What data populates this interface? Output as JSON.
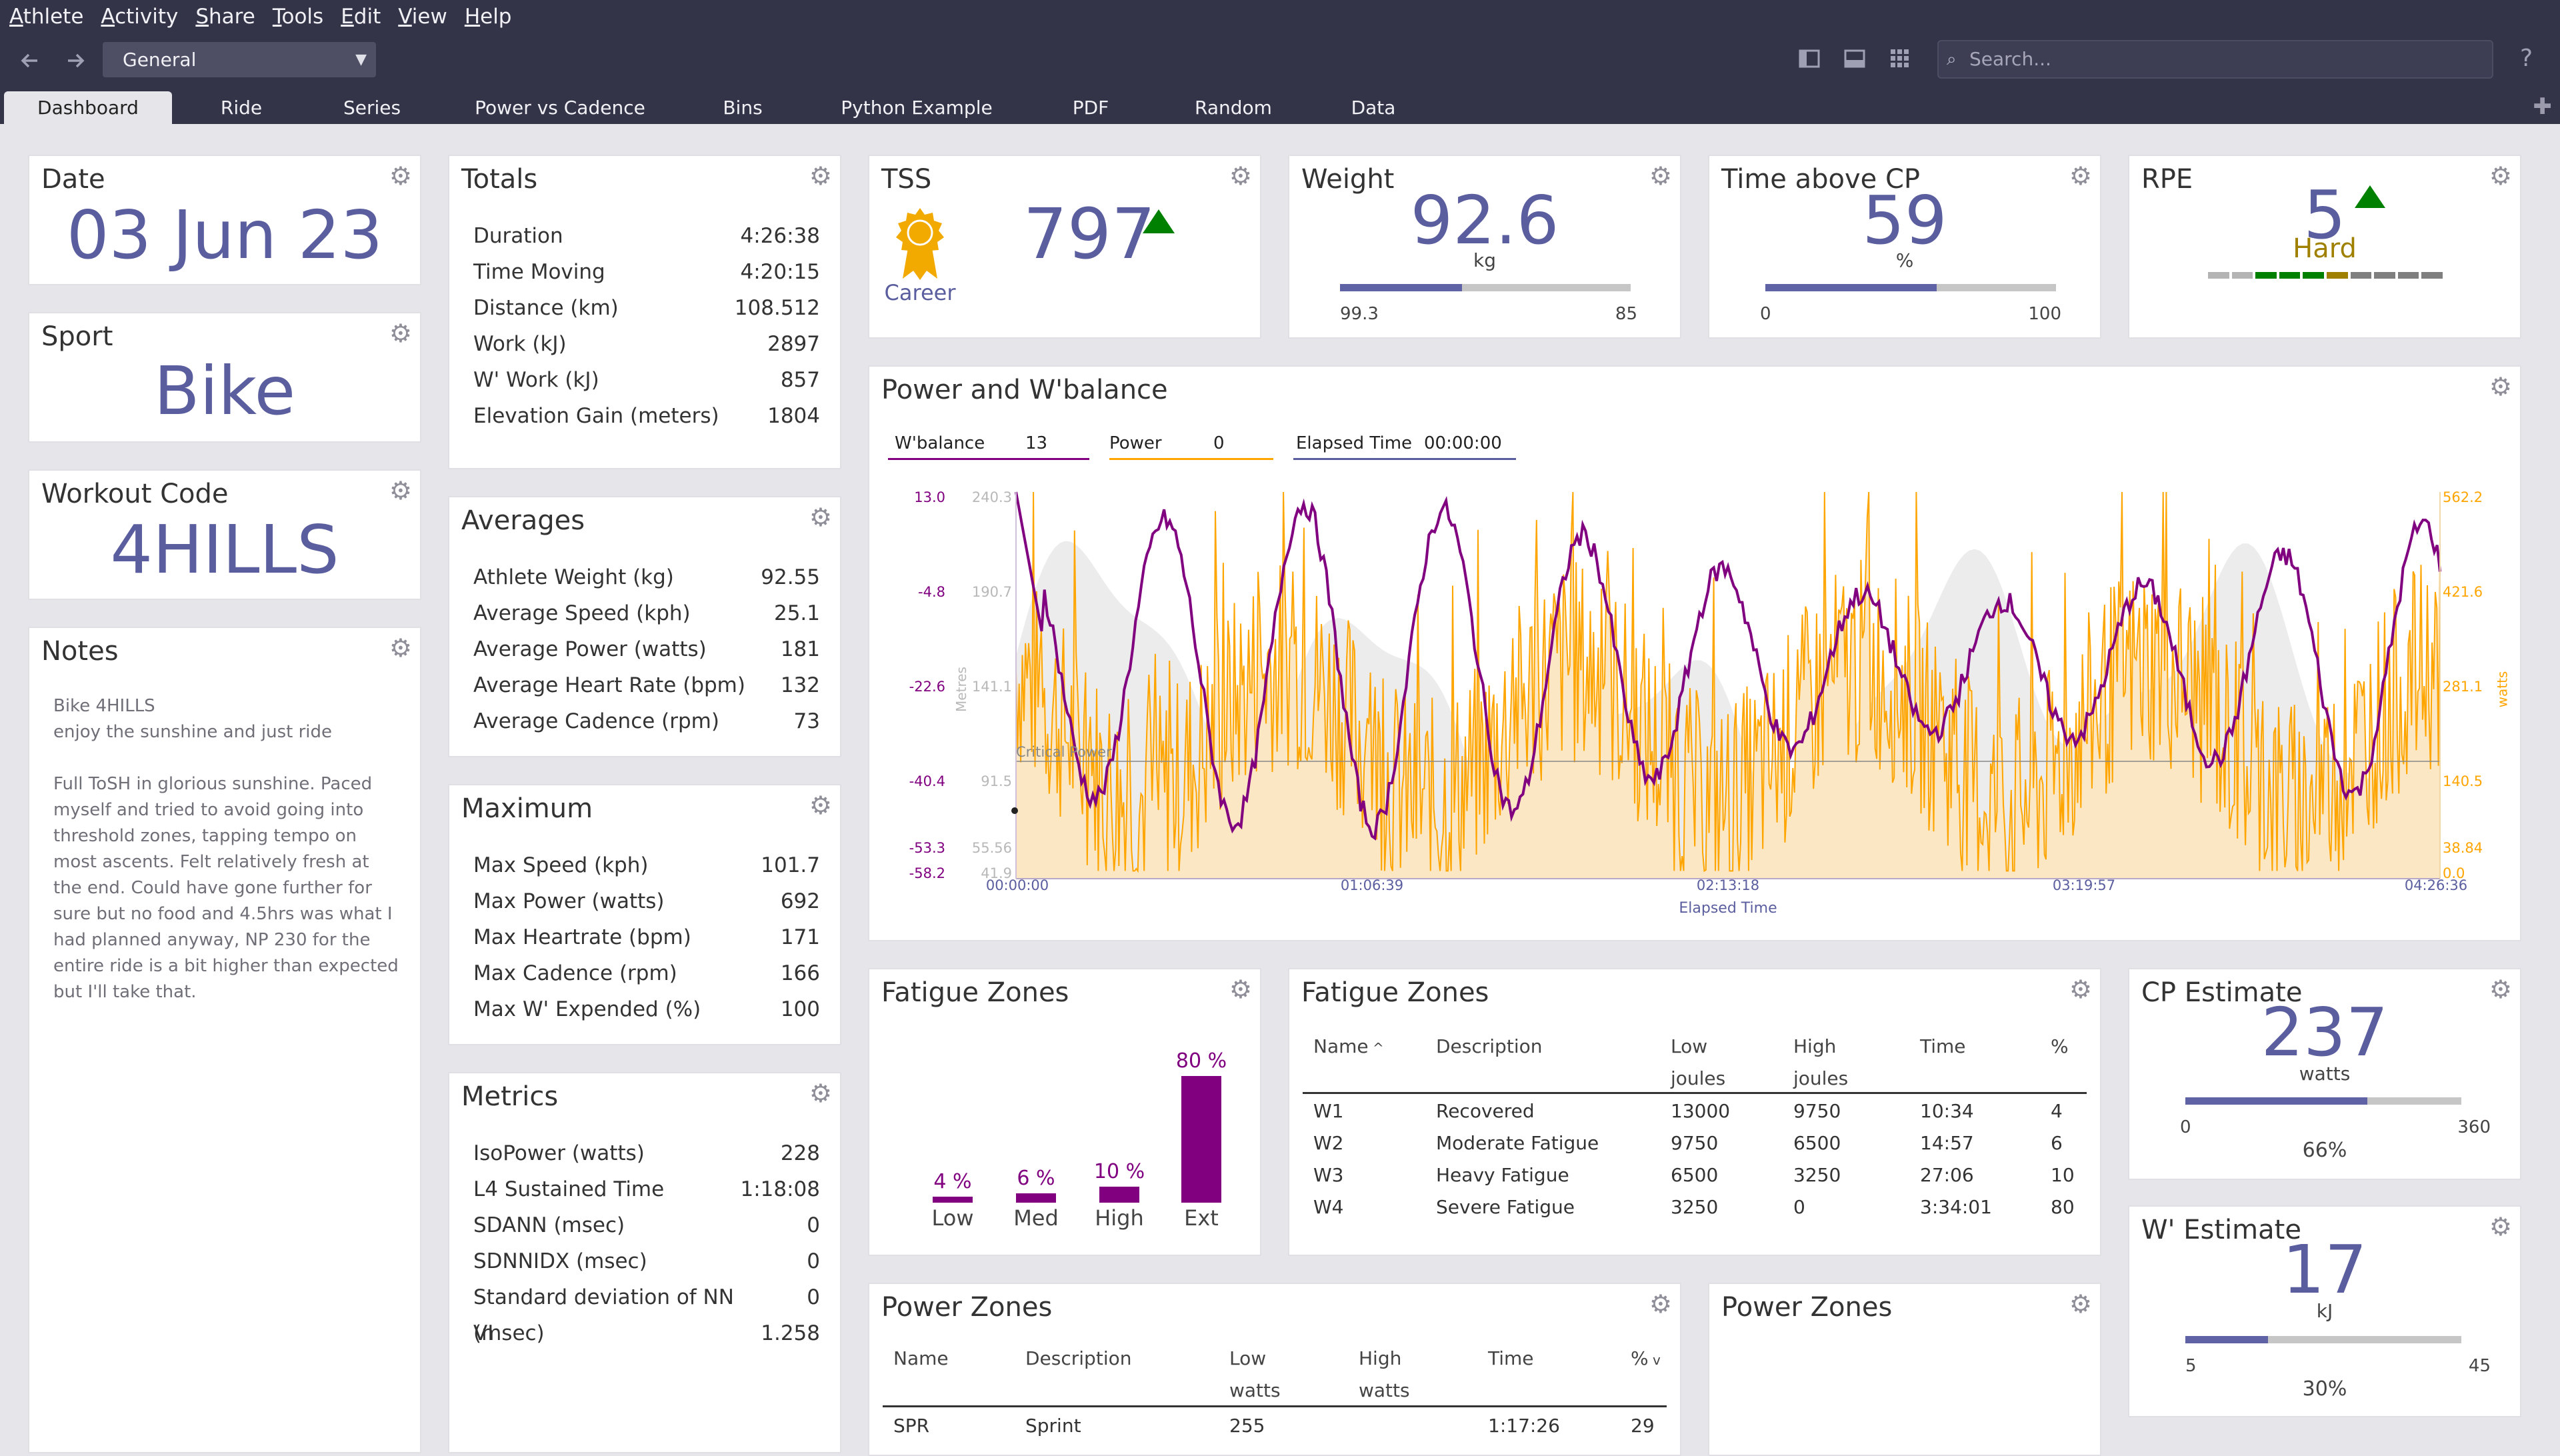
{
  "menubar": [
    "Athlete",
    "Activity",
    "Share",
    "Tools",
    "Edit",
    "View",
    "Help"
  ],
  "toolbar": {
    "back_icon": "arrow-left-icon",
    "forward_icon": "arrow-right-icon",
    "view_selected": "General",
    "search_placeholder": "Search...",
    "help_icon": "?"
  },
  "tabs": [
    "Dashboard",
    "Ride",
    "Series",
    "Power vs Cadence",
    "Bins",
    "Python Example",
    "PDF",
    "Random",
    "Data"
  ],
  "active_tab": "Dashboard",
  "colors": {
    "accent": "#5b5e9e",
    "wbal": "#800080",
    "power": "#ffa500",
    "up_arrow": "#008000"
  },
  "date_tile": {
    "title": "Date",
    "value": "03 Jun 23"
  },
  "sport_tile": {
    "title": "Sport",
    "value": "Bike"
  },
  "workout_tile": {
    "title": "Workout Code",
    "value": "4HILLS"
  },
  "notes_tile": {
    "title": "Notes",
    "text": "Bike 4HILLS\nenjoy the sunshine and just ride\n\nFull ToSH in glorious sunshine. Paced myself and tried to avoid going into threshold zones, tapping tempo on most ascents. Felt relatively fresh at the end. Could have gone further for sure but no food and 4.5hrs was what I had planned anyway, NP 230 for the entire ride is a bit higher than expected but I'll take that."
  },
  "totals": {
    "title": "Totals",
    "rows": [
      {
        "label": "Duration",
        "value": "4:26:38"
      },
      {
        "label": "Time Moving",
        "value": "4:20:15"
      },
      {
        "label": "Distance (km)",
        "value": "108.512"
      },
      {
        "label": "Work (kJ)",
        "value": "2897"
      },
      {
        "label": "W' Work (kJ)",
        "value": "857"
      },
      {
        "label": "Elevation Gain (meters)",
        "value": "1804"
      }
    ]
  },
  "averages": {
    "title": "Averages",
    "rows": [
      {
        "label": "Athlete Weight (kg)",
        "value": "92.55"
      },
      {
        "label": "Average Speed (kph)",
        "value": "25.1"
      },
      {
        "label": "Average Power (watts)",
        "value": "181"
      },
      {
        "label": "Average Heart Rate (bpm)",
        "value": "132"
      },
      {
        "label": "Average Cadence (rpm)",
        "value": "73"
      }
    ]
  },
  "maximum": {
    "title": "Maximum",
    "rows": [
      {
        "label": "Max Speed (kph)",
        "value": "101.7"
      },
      {
        "label": "Max Power (watts)",
        "value": "692"
      },
      {
        "label": "Max Heartrate (bpm)",
        "value": "171"
      },
      {
        "label": "Max Cadence (rpm)",
        "value": "166"
      },
      {
        "label": "Max W' Expended (%)",
        "value": "100"
      }
    ]
  },
  "metrics": {
    "title": "Metrics",
    "rows": [
      {
        "label": "IsoPower (watts)",
        "value": "228"
      },
      {
        "label": "L4 Sustained Time",
        "value": "1:18:08"
      },
      {
        "label": "SDANN (msec)",
        "value": "0"
      },
      {
        "label": "SDNNIDX (msec)",
        "value": "0"
      },
      {
        "label": "Standard deviation of NN (msec)",
        "value": "0"
      },
      {
        "label": "VI",
        "value": "1.258"
      }
    ]
  },
  "tss": {
    "title": "TSS",
    "value": "797",
    "badge_label": "Career",
    "badge_icon": "award-ribbon-icon",
    "trend_icon": "up-triangle-icon"
  },
  "weight": {
    "title": "Weight",
    "value": "92.6",
    "unit": "kg",
    "min": "99.3",
    "max": "85",
    "fill": 0.42
  },
  "time_above_cp": {
    "title": "Time above CP",
    "value": "59",
    "unit": "%",
    "min": "0",
    "max": "100",
    "fill": 0.59
  },
  "rpe": {
    "title": "RPE",
    "value": "5",
    "label": "Hard",
    "trend_icon": "up-triangle-icon",
    "scale_count": 10
  },
  "power_chart": {
    "title": "Power and W'balance",
    "legend": [
      {
        "name": "W'balance",
        "value": "13"
      },
      {
        "name": "Power",
        "value": "0"
      },
      {
        "name": "Elapsed Time",
        "value": "00:00:00"
      }
    ],
    "left_ticks": [
      "13.0",
      "-4.8",
      "-22.6",
      "-40.4",
      "-53.3",
      "-58.2"
    ],
    "mid_ticks": [
      "240.3",
      "190.7",
      "141.1",
      "91.5",
      "55.56",
      "41.9"
    ],
    "mid_axis_label": "Metres",
    "right_ticks": [
      "562.2",
      "421.6",
      "281.1",
      "140.5",
      "38.84",
      "0.0"
    ],
    "right_axis_label": "watts",
    "x_ticks": [
      "00:00:00",
      "01:06:39",
      "02:13:18",
      "03:19:57",
      "04:26:36"
    ],
    "x_label": "Elapsed Time",
    "cp_label": "Critical Power"
  },
  "chart_data": {
    "type": "line",
    "xlabel": "Elapsed Time",
    "x": [
      "00:00:00",
      "01:06:39",
      "02:13:18",
      "03:19:57",
      "04:26:36"
    ],
    "series": [
      {
        "name": "W'balance",
        "axis": "left",
        "range": [
          -58.2,
          13.0
        ]
      },
      {
        "name": "Power",
        "axis": "right",
        "unit": "watts",
        "range": [
          0.0,
          562.2
        ]
      }
    ]
  },
  "fatigue_bars": {
    "title": "Fatigue Zones",
    "zones": [
      {
        "label": "Low",
        "pct": "4 %",
        "value": 4
      },
      {
        "label": "Med",
        "pct": "6 %",
        "value": 6
      },
      {
        "label": "High",
        "pct": "10 %",
        "value": 10
      },
      {
        "label": "Ext",
        "pct": "80 %",
        "value": 80
      }
    ]
  },
  "fatigue_table": {
    "title": "Fatigue Zones",
    "headers": [
      "Name",
      "Description",
      "Low\njoules",
      "High\njoules",
      "Time",
      "%"
    ],
    "sort_icon": "chevron-up-icon",
    "rows": [
      [
        "W1",
        "Recovered",
        "13000",
        "9750",
        "10:34",
        "4"
      ],
      [
        "W2",
        "Moderate Fatigue",
        "9750",
        "6500",
        "14:57",
        "6"
      ],
      [
        "W3",
        "Heavy Fatigue",
        "6500",
        "3250",
        "27:06",
        "10"
      ],
      [
        "W4",
        "Severe Fatigue",
        "3250",
        "0",
        "3:34:01",
        "80"
      ]
    ]
  },
  "cp_estimate": {
    "title": "CP Estimate",
    "value": "237",
    "unit": "watts",
    "min": "0",
    "max": "360",
    "pct": "66%",
    "fill": 0.66
  },
  "w_estimate": {
    "title": "W' Estimate",
    "value": "17",
    "unit": "kJ",
    "min": "5",
    "max": "45",
    "pct": "30%",
    "fill": 0.3
  },
  "power_zones_table": {
    "title": "Power Zones",
    "headers": [
      "Name",
      "Description",
      "Low\nwatts",
      "High\nwatts",
      "Time",
      "%"
    ],
    "sort_icon": "chevron-down-icon",
    "rows": [
      [
        "SPR",
        "Sprint",
        "255",
        "",
        "1:17:26",
        "29"
      ]
    ]
  },
  "power_zones_chart": {
    "title": "Power Zones"
  }
}
